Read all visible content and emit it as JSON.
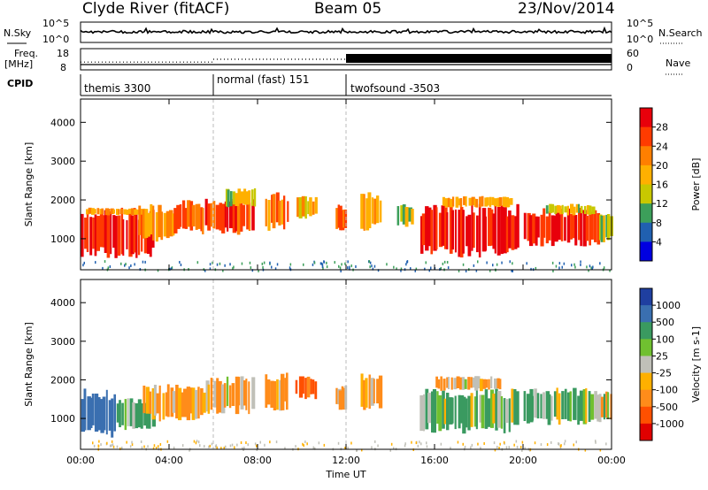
{
  "header": {
    "station": "Clyde River (fitACF)",
    "beam": "Beam 05",
    "date": "23/Nov/2014"
  },
  "noise_panel": {
    "left_label": "N.Sky",
    "right_label": "N.Search",
    "left_ticks": [
      "10^5",
      "10^0"
    ],
    "right_ticks": [
      "10^5",
      "10^0"
    ]
  },
  "freq_panel": {
    "left_label_line1": "Freq.",
    "left_label_line2": "[MHz]",
    "left_ticks": [
      "18",
      "8"
    ],
    "right_label": "Nave",
    "right_ticks": [
      "60",
      "0"
    ],
    "freq_mhz": 10.5,
    "nave_segments": [
      {
        "start": 0.0,
        "end": 6.0,
        "nave": 22
      },
      {
        "start": 6.0,
        "end": 12.0,
        "nave": 30
      },
      {
        "start": 12.0,
        "end": 24.0,
        "nave": 45
      }
    ]
  },
  "cpid": {
    "label": "CPID",
    "segments": [
      {
        "start": 0.0,
        "end": 6.0,
        "name": "themis 3300"
      },
      {
        "start": 6.0,
        "end": 12.0,
        "name": "normal (fast) 151"
      },
      {
        "start": 12.0,
        "end": 24.0,
        "name": "twofsound -3503"
      }
    ]
  },
  "power_colorbar": {
    "label": "Power [dB]",
    "ticks": [
      "28",
      "24",
      "20",
      "16",
      "12",
      "8",
      "4"
    ],
    "colors": [
      "#e8000b",
      "#ff3b00",
      "#ff7f00",
      "#ffb000",
      "#c8c800",
      "#3c9f5a",
      "#2060b0",
      "#0000e0"
    ]
  },
  "velocity_colorbar": {
    "label": "Velocity [m s-1]",
    "ticks": [
      "1000",
      "500",
      "100",
      "25",
      "-25",
      "-100",
      "-500",
      "-1000"
    ],
    "colors": [
      "#1f3fa0",
      "#3a6fb0",
      "#3a9a60",
      "#70c030",
      "#c0c0b8",
      "#ffb000",
      "#ff8c1a",
      "#ff5000",
      "#e00000"
    ]
  },
  "chart_data": {
    "type": "heatmap",
    "xlabel": "Time UT",
    "ylabel": "Slant Range [km]",
    "x_tick_labels": [
      "00:00",
      "04:00",
      "08:00",
      "12:00",
      "16:00",
      "20:00",
      "00:00"
    ],
    "x_ticks_hours": [
      0,
      4,
      8,
      12,
      16,
      20,
      24
    ],
    "xlim_hours": [
      0,
      24
    ],
    "y_tick_labels": [
      "1000",
      "2000",
      "3000",
      "4000"
    ],
    "y_ticks": [
      1000,
      2000,
      3000,
      4000
    ],
    "ylim_km": [
      200,
      4600
    ],
    "mode_change_times_hours": [
      6,
      12
    ],
    "power_panel": {
      "quantity": "Power",
      "units": "dB",
      "blobs": [
        {
          "t0": 0.0,
          "t1": 3.3,
          "r0": 500,
          "r1": 1800,
          "value": 29
        },
        {
          "t0": 0.2,
          "t1": 3.0,
          "r0": 1600,
          "r1": 1800,
          "value": 20
        },
        {
          "t0": 2.6,
          "t1": 4.2,
          "r0": 900,
          "r1": 1900,
          "value": 20
        },
        {
          "t0": 4.2,
          "t1": 5.6,
          "r0": 1100,
          "r1": 2000,
          "value": 24
        },
        {
          "t0": 5.6,
          "t1": 7.8,
          "r0": 1100,
          "r1": 2100,
          "value": 26
        },
        {
          "t0": 6.5,
          "t1": 7.9,
          "r0": 1800,
          "r1": 2300,
          "value": 14
        },
        {
          "t0": 8.3,
          "t1": 9.4,
          "r0": 1200,
          "r1": 2200,
          "value": 23
        },
        {
          "t0": 9.7,
          "t1": 10.7,
          "r0": 1500,
          "r1": 2100,
          "value": 18
        },
        {
          "t0": 11.5,
          "t1": 12.0,
          "r0": 1200,
          "r1": 1900,
          "value": 24
        },
        {
          "t0": 12.6,
          "t1": 13.6,
          "r0": 1200,
          "r1": 2200,
          "value": 20
        },
        {
          "t0": 14.3,
          "t1": 15.0,
          "r0": 1300,
          "r1": 1900,
          "value": 14
        },
        {
          "t0": 15.3,
          "t1": 19.8,
          "r0": 500,
          "r1": 1900,
          "value": 29
        },
        {
          "t0": 16.3,
          "t1": 19.5,
          "r0": 1800,
          "r1": 2100,
          "value": 20
        },
        {
          "t0": 20.0,
          "t1": 23.4,
          "r0": 800,
          "r1": 1800,
          "value": 28
        },
        {
          "t0": 21.0,
          "t1": 23.2,
          "r0": 1600,
          "r1": 1900,
          "value": 14
        },
        {
          "t0": 23.4,
          "t1": 24.0,
          "r0": 900,
          "r1": 1700,
          "value": 13
        }
      ]
    },
    "velocity_panel": {
      "quantity": "Velocity",
      "units": "m s-1",
      "blobs": [
        {
          "t0": 0.0,
          "t1": 1.6,
          "r0": 500,
          "r1": 1800,
          "value": 800
        },
        {
          "t0": 1.6,
          "t1": 3.3,
          "r0": 700,
          "r1": 1600,
          "value": 200
        },
        {
          "t0": 2.8,
          "t1": 5.6,
          "r0": 900,
          "r1": 1900,
          "value": -200
        },
        {
          "t0": 5.6,
          "t1": 7.8,
          "r0": 1100,
          "r1": 2100,
          "value": -200
        },
        {
          "t0": 8.3,
          "t1": 9.4,
          "r0": 1200,
          "r1": 2200,
          "value": -200
        },
        {
          "t0": 9.7,
          "t1": 10.7,
          "r0": 1500,
          "r1": 2100,
          "value": -600
        },
        {
          "t0": 11.5,
          "t1": 12.0,
          "r0": 1200,
          "r1": 1900,
          "value": -200
        },
        {
          "t0": 12.6,
          "t1": 13.6,
          "r0": 1200,
          "r1": 2200,
          "value": -200
        },
        {
          "t0": 15.3,
          "t1": 19.8,
          "r0": 600,
          "r1": 1800,
          "value": 150
        },
        {
          "t0": 16.0,
          "t1": 19.0,
          "r0": 1700,
          "r1": 2100,
          "value": -200
        },
        {
          "t0": 20.0,
          "t1": 23.4,
          "r0": 800,
          "r1": 1800,
          "value": 150
        },
        {
          "t0": 23.4,
          "t1": 24.0,
          "r0": 900,
          "r1": 1700,
          "value": 100
        }
      ]
    }
  }
}
